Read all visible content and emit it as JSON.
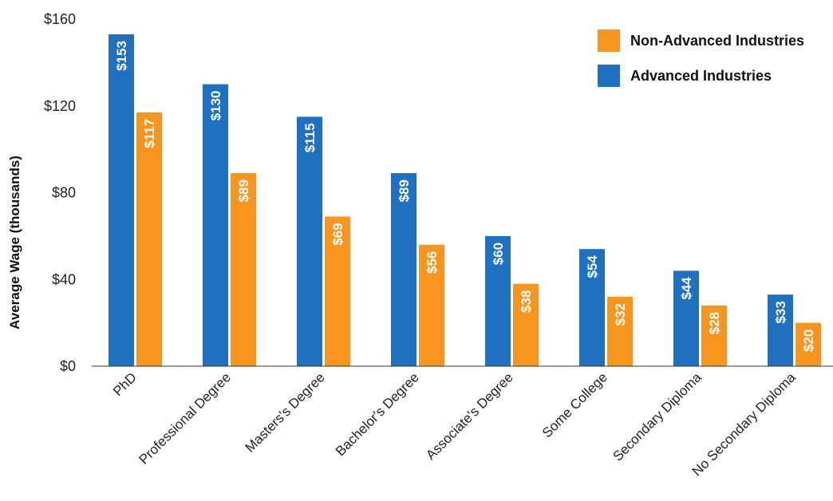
{
  "chart_data": {
    "type": "bar",
    "categories": [
      "PhD",
      "Professional Degree",
      "Masters's Degree",
      "Bachelor's Degree",
      "Associate's Degree",
      "Some College",
      "Secondary Diploma",
      "No Secondary Diploma"
    ],
    "series": [
      {
        "name": "Advanced Industries",
        "color": "#1f71bf",
        "values": [
          153,
          130,
          115,
          89,
          60,
          54,
          44,
          33
        ],
        "labels": [
          "$153",
          "$130",
          "$115",
          "$89",
          "$60",
          "$54",
          "$44",
          "$33"
        ]
      },
      {
        "name": "Non-Advanced Industries",
        "color": "#f7951f",
        "values": [
          117,
          89,
          69,
          56,
          38,
          32,
          28,
          20
        ],
        "labels": [
          "$117",
          "$89",
          "$69",
          "$56",
          "$38",
          "$32",
          "$28",
          "$20"
        ]
      }
    ],
    "ylabel": "Average Wage (thousands)",
    "ylim": [
      0,
      160
    ],
    "yticks": [
      0,
      40,
      80,
      120,
      160
    ],
    "ytick_labels": [
      "$0",
      "$40",
      "$80",
      "$120",
      "$160"
    ],
    "legend": {
      "placement": "top-right",
      "order": [
        "Non-Advanced Industries",
        "Advanced Industries"
      ]
    },
    "grid": false
  }
}
